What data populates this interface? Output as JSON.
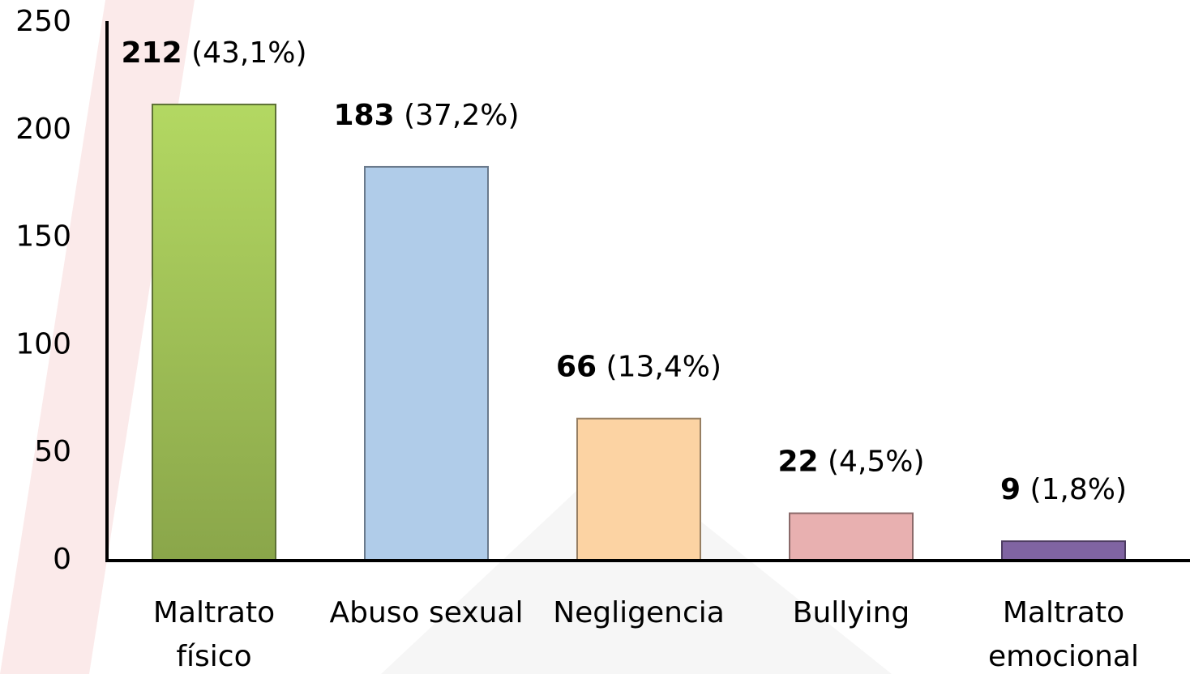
{
  "chart_data": {
    "type": "bar",
    "categories": [
      "Maltrato físico",
      "Abuso sexual",
      "Negligencia",
      "Bullying",
      "Maltrato emocional"
    ],
    "values": [
      212,
      183,
      66,
      22,
      9
    ],
    "percent_labels": [
      "(43,1%)",
      "(37,2%)",
      "(13,4%)",
      "(4,5%)",
      "(1,8%)"
    ],
    "colors": [
      "#9bbb59",
      "#b0cce9",
      "#fcd3a3",
      "#e8b0b0",
      "#8064a2"
    ],
    "ylim": [
      0,
      250
    ],
    "yticks": [
      0,
      50,
      100,
      150,
      200,
      250
    ],
    "grid": false
  }
}
